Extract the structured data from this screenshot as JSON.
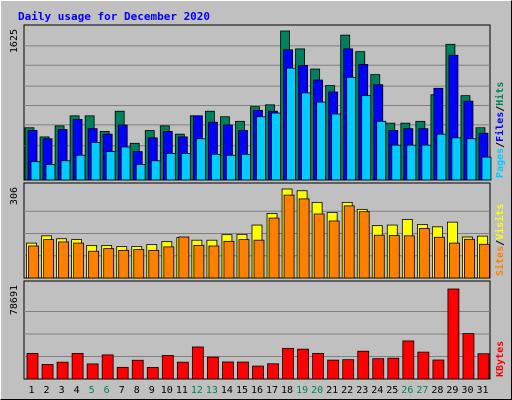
{
  "chart_data": {
    "type": "bar",
    "title": "Daily usage for December 2020",
    "categories": [
      "1",
      "2",
      "3",
      "4",
      "5",
      "6",
      "7",
      "8",
      "9",
      "10",
      "11",
      "12",
      "13",
      "14",
      "15",
      "16",
      "17",
      "18",
      "19",
      "20",
      "21",
      "22",
      "23",
      "24",
      "25",
      "26",
      "27",
      "28",
      "29",
      "30",
      "31"
    ],
    "weekend_days": [
      "5",
      "6",
      "12",
      "13",
      "19",
      "20",
      "26",
      "27"
    ],
    "panels": [
      {
        "name": "hits-files-pages",
        "ylabel": [
          "Pages",
          "/",
          "Files",
          "/",
          "Hits"
        ],
        "y_tick": "1625",
        "ylim": [
          0,
          1625
        ],
        "series": [
          {
            "name": "Hits",
            "color": "#00805c",
            "values": [
              570,
              470,
              590,
              700,
              700,
              530,
              750,
              400,
              540,
              590,
              500,
              700,
              750,
              690,
              640,
              800,
              820,
              1625,
              1430,
              1210,
              1030,
              1580,
              1400,
              1150,
              620,
              620,
              640,
              930,
              1480,
              920,
              570
            ]
          },
          {
            "name": "Files",
            "color": "#0000ff",
            "values": [
              540,
              450,
              550,
              660,
              560,
              500,
              600,
              310,
              460,
              530,
              470,
              700,
              630,
              600,
              540,
              760,
              750,
              1420,
              1250,
              1090,
              960,
              1430,
              1260,
              1040,
              540,
              560,
              560,
              1000,
              1360,
              860,
              510
            ]
          },
          {
            "name": "Pages",
            "color": "#00ccff",
            "values": [
              200,
              170,
              210,
              270,
              410,
              310,
              360,
              170,
              210,
              290,
              290,
              450,
              280,
              270,
              280,
              690,
              730,
              1220,
              950,
              850,
              720,
              1120,
              920,
              640,
              380,
              380,
              380,
              500,
              460,
              450,
              250
            ]
          }
        ]
      },
      {
        "name": "visits-sites",
        "ylabel": [
          "Sites",
          "/",
          "Visits"
        ],
        "y_tick": "306",
        "ylim": [
          0,
          306
        ],
        "series": [
          {
            "name": "Visits",
            "color": "#ffff00",
            "values": [
              120,
              145,
              135,
              132,
              112,
              112,
              108,
              108,
              115,
              125,
              139,
              130,
              130,
              149,
              150,
              182,
              222,
              306,
              300,
              260,
              225,
              260,
              236,
              180,
              182,
              201,
              184,
              176,
              192,
              141,
              144
            ]
          },
          {
            "name": "Sites",
            "color": "#ff8000",
            "values": [
              110,
              132,
              124,
              120,
              92,
              101,
              95,
              98,
              95,
              107,
              141,
              112,
              110,
              126,
              132,
              130,
              206,
              285,
              272,
              220,
              196,
              248,
              228,
              147,
              146,
              145,
              170,
              140,
              120,
              133,
              116
            ]
          }
        ]
      },
      {
        "name": "kbytes",
        "ylabel": [
          "KBytes"
        ],
        "y_tick": "78691",
        "ylim": [
          0,
          78691
        ],
        "series": [
          {
            "name": "KBytes",
            "color": "#ff0000",
            "values": [
              22400,
              12700,
              14700,
              22400,
              13200,
              21100,
              10200,
              16400,
              10100,
              20600,
              14700,
              28000,
              19100,
              14900,
              14800,
              11300,
              13300,
              26800,
              26100,
              22400,
              16500,
              16900,
              24300,
              17800,
              18200,
              33300,
              23500,
              16600,
              78691,
              39700,
              22100
            ]
          }
        ]
      }
    ]
  }
}
